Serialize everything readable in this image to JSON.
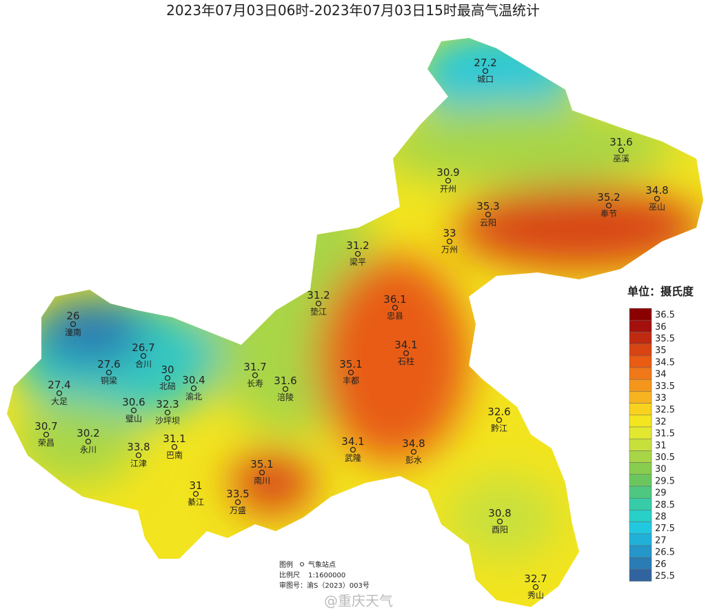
{
  "title": "2023年07月03日06时-2023年07月03日15时最高气温统计",
  "stations": [
    {
      "name": "城口",
      "value": 27.2
    },
    {
      "name": "巫溪",
      "value": 31.6
    },
    {
      "name": "开州",
      "value": 30.9
    },
    {
      "name": "云阳",
      "value": 35.3
    },
    {
      "name": "奉节",
      "value": 35.2
    },
    {
      "name": "巫山",
      "value": 34.8
    },
    {
      "name": "万州",
      "value": 33
    },
    {
      "name": "梁平",
      "value": 31.2
    },
    {
      "name": "垫江",
      "value": 31.2
    },
    {
      "name": "忠县",
      "value": 36.1
    },
    {
      "name": "石柱",
      "value": 34.1
    },
    {
      "name": "丰都",
      "value": 35.1
    },
    {
      "name": "潼南",
      "value": 26
    },
    {
      "name": "合川",
      "value": 26.7
    },
    {
      "name": "铜梁",
      "value": 27.6
    },
    {
      "name": "北碚",
      "value": 30
    },
    {
      "name": "渝北",
      "value": 30.4
    },
    {
      "name": "长寿",
      "value": 31.7
    },
    {
      "name": "涪陵",
      "value": 31.6
    },
    {
      "name": "大足",
      "value": 27.4
    },
    {
      "name": "璧山",
      "value": 30.6
    },
    {
      "name": "沙坪坝",
      "value": 32.3
    },
    {
      "name": "荣昌",
      "value": 30.7
    },
    {
      "name": "永川",
      "value": 30.2
    },
    {
      "name": "巴南",
      "value": 31.1
    },
    {
      "name": "江津",
      "value": 33.8
    },
    {
      "name": "武隆",
      "value": 34.1
    },
    {
      "name": "彭水",
      "value": 34.8
    },
    {
      "name": "黔江",
      "value": 32.6
    },
    {
      "name": "南川",
      "value": 35.1
    },
    {
      "name": "綦江",
      "value": 31
    },
    {
      "name": "万盛",
      "value": 33.5
    },
    {
      "name": "酉阳",
      "value": 30.8
    },
    {
      "name": "秀山",
      "value": 32.7
    }
  ],
  "legend": {
    "title": "单位：摄氏度",
    "items": [
      {
        "value": 36.5,
        "color": "#8b0000"
      },
      {
        "value": 36,
        "color": "#a3100e"
      },
      {
        "value": 35.5,
        "color": "#bf2a10"
      },
      {
        "value": 35,
        "color": "#d84412"
      },
      {
        "value": 34.5,
        "color": "#e85c14"
      },
      {
        "value": 34,
        "color": "#f07818"
      },
      {
        "value": 33.5,
        "color": "#f5961c"
      },
      {
        "value": 33,
        "color": "#f8b420"
      },
      {
        "value": 32.5,
        "color": "#f9d21e"
      },
      {
        "value": 32,
        "color": "#f4e61e"
      },
      {
        "value": 31.5,
        "color": "#e2e830"
      },
      {
        "value": 31,
        "color": "#c8e03c"
      },
      {
        "value": 30.5,
        "color": "#a8d646"
      },
      {
        "value": 30,
        "color": "#88cc50"
      },
      {
        "value": 29.5,
        "color": "#6cc660"
      },
      {
        "value": 29,
        "color": "#4ec880"
      },
      {
        "value": 28.5,
        "color": "#36cca8"
      },
      {
        "value": 28,
        "color": "#28d0c8"
      },
      {
        "value": 27.5,
        "color": "#22c8e0"
      },
      {
        "value": 27,
        "color": "#20b0d8"
      },
      {
        "value": 26.5,
        "color": "#2496c8"
      },
      {
        "value": 26,
        "color": "#2a7cb4"
      },
      {
        "value": 25.5,
        "color": "#3064a0"
      }
    ]
  },
  "footnote": {
    "legend_label": "图例",
    "station_label": "气象站点",
    "scale_label": "比例尺",
    "scale": "1:1600000",
    "approval": "审图号：渝S（2023）003号"
  },
  "watermark": "@重庆天气"
}
